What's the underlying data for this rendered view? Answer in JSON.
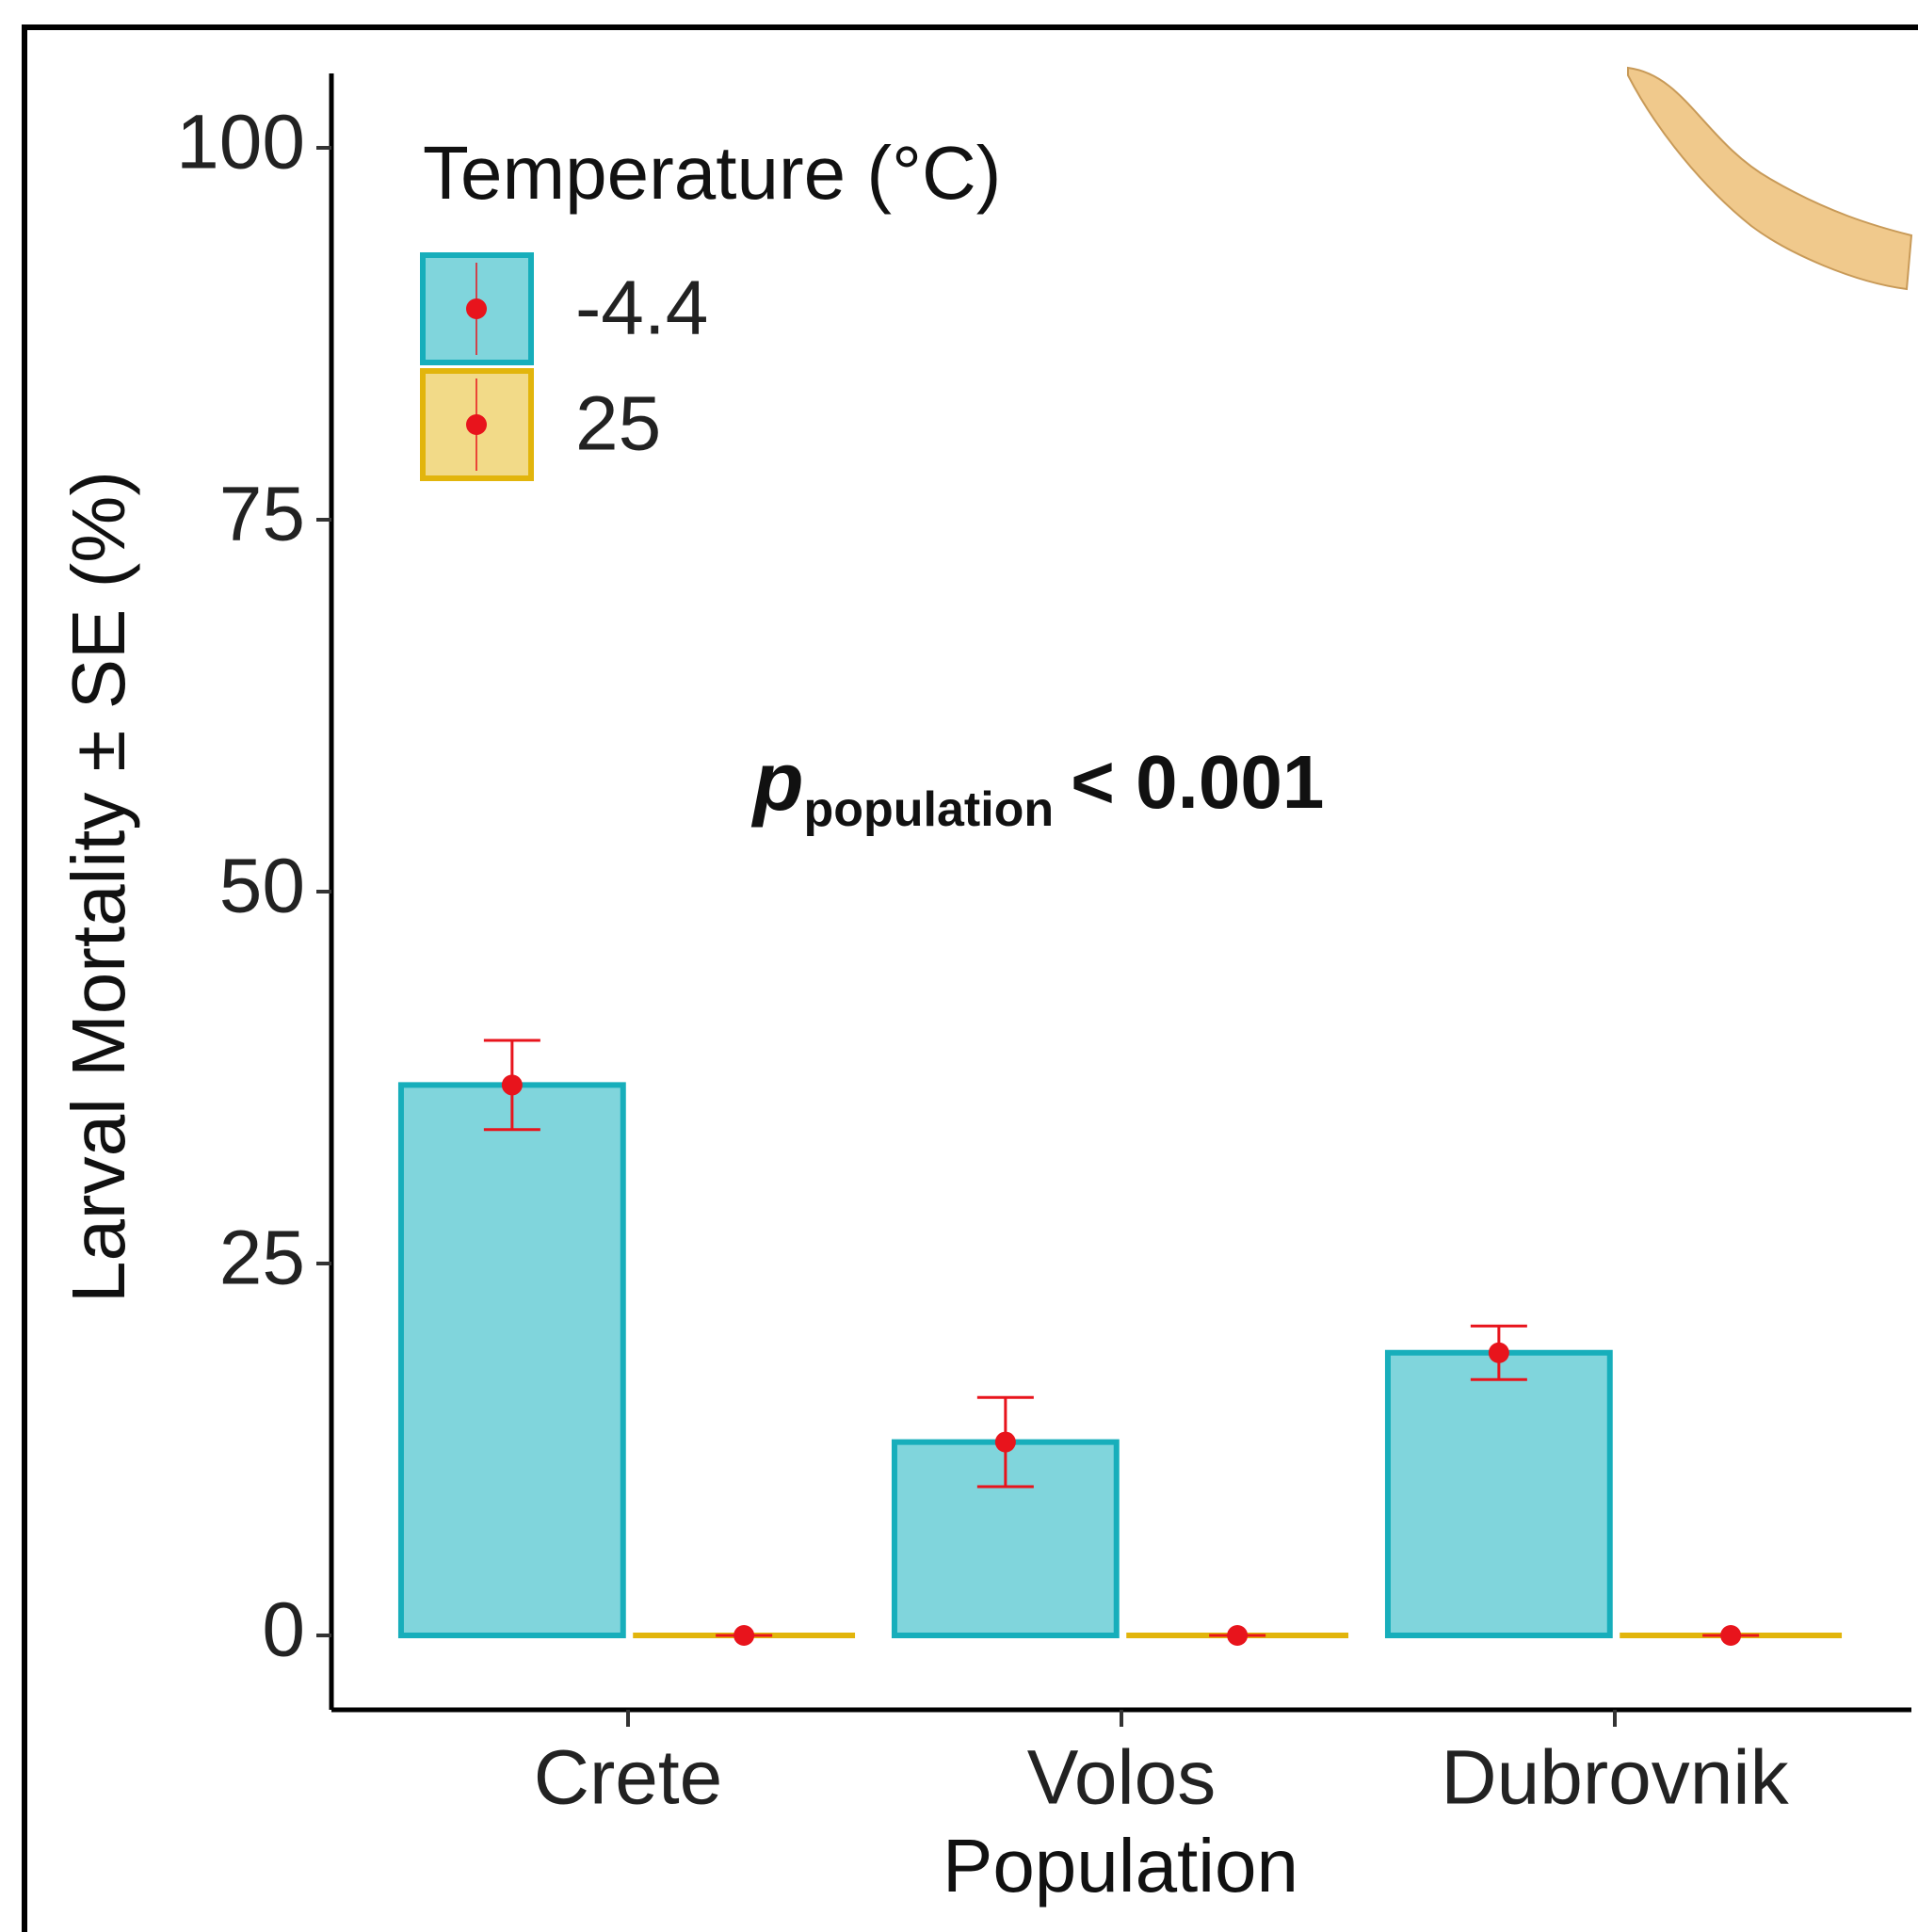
{
  "chart_data": {
    "type": "bar",
    "categories": [
      "Crete",
      "Volos",
      "Dubrovnik"
    ],
    "x_label": "Population",
    "y_label": "Larval Mortality ± SE (%)",
    "legend_title": "Temperature (°C)",
    "legend_position": "top-left",
    "annotation": {
      "symbol": "p",
      "subscript": "population",
      "text": "< 0.001"
    },
    "series": [
      {
        "name": "-4.4",
        "color": "#80d5dc",
        "edge_color": "#17aebb",
        "values": [
          37,
          13,
          19
        ],
        "errors": [
          3,
          3,
          1.8
        ]
      },
      {
        "name": "25",
        "color": "#f2da88",
        "edge_color": "#e2b50c",
        "values": [
          0,
          0,
          0
        ],
        "errors": [
          0,
          0,
          0
        ]
      }
    ],
    "error_color": "#e8141c",
    "ylim": [
      -5,
      105
    ],
    "yticks": [
      0,
      25,
      50,
      75,
      100
    ]
  }
}
